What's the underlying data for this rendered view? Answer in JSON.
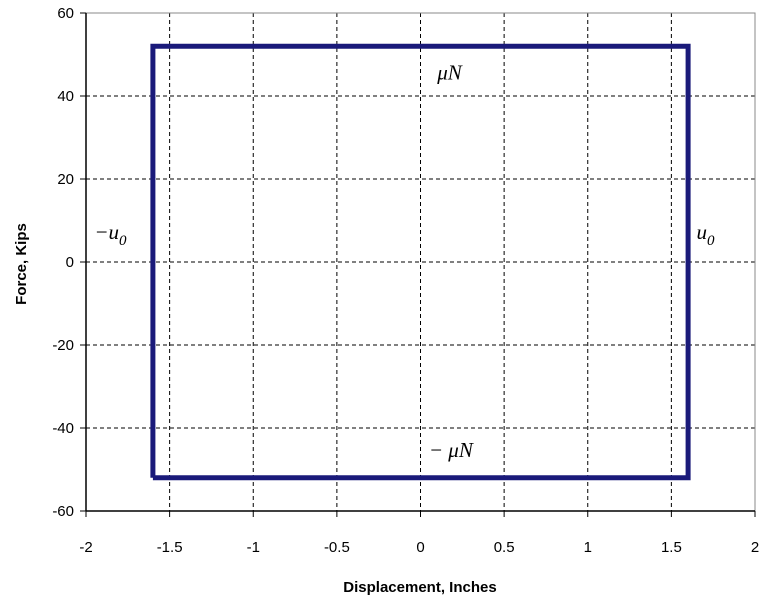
{
  "chart_data": {
    "type": "line",
    "title": "",
    "xlabel": "Displacement, Inches",
    "ylabel": "Force, Kips",
    "xlim": [
      -2,
      2
    ],
    "ylim": [
      -60,
      60
    ],
    "xticks": [
      -2,
      -1.5,
      -1,
      -0.5,
      0,
      0.5,
      1,
      1.5,
      2
    ],
    "yticks": [
      -60,
      -40,
      -20,
      0,
      20,
      40,
      60
    ],
    "xtick_labels": [
      "-2",
      "-1.5",
      "-1",
      "-0.5",
      "0",
      "0.5",
      "1",
      "1.5",
      "2"
    ],
    "ytick_labels": [
      "-60",
      "-40",
      "-20",
      "0",
      "20",
      "40",
      "60"
    ],
    "grid": true,
    "grid_style": "dashed",
    "series": [
      {
        "color": "#1a1a7a",
        "x": [
          -1.6,
          -1.6,
          1.6,
          1.6,
          -1.6
        ],
        "y": [
          -52,
          52,
          52,
          -52,
          -52
        ]
      }
    ],
    "annotations": [
      {
        "id": "mu-n",
        "text": "μN",
        "x": 0.1,
        "y": 44
      },
      {
        "id": "neg-mu-n",
        "text": "− μN",
        "x": 0.05,
        "y": -47
      },
      {
        "id": "neg-u0",
        "text": "−u",
        "subscript": "0",
        "x": -1.95,
        "y": 5.5
      },
      {
        "id": "u0",
        "text": "u",
        "subscript": "0",
        "x": 1.65,
        "y": 5.5
      }
    ]
  }
}
